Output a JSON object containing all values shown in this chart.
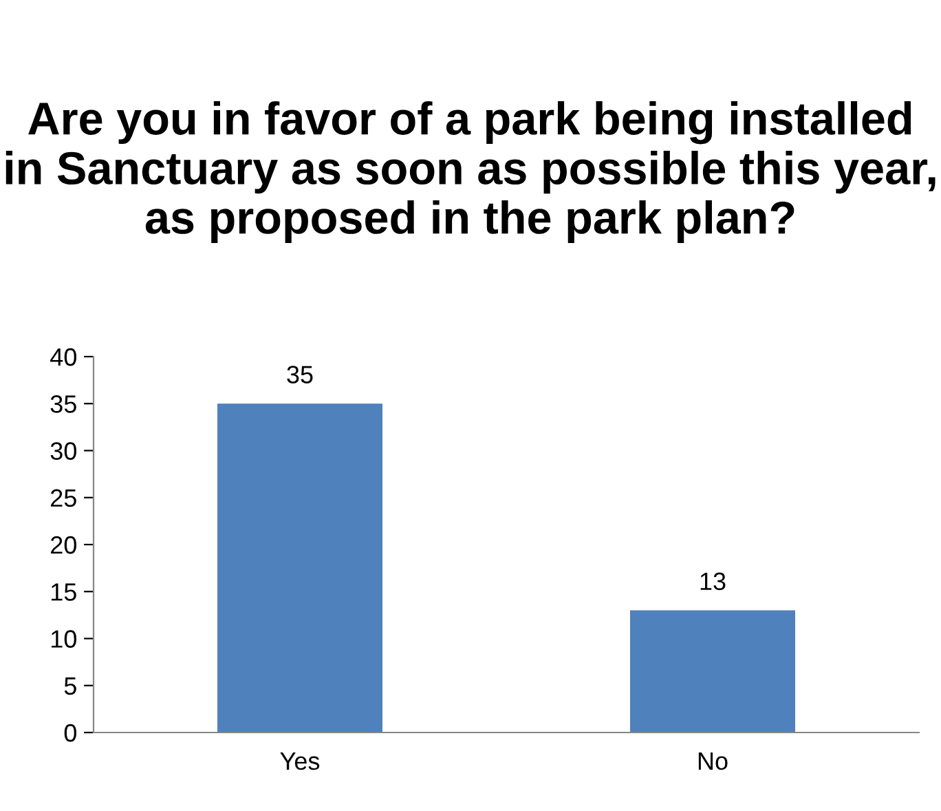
{
  "chart_data": {
    "type": "bar",
    "title": "Are you in favor of a park being installed in Sanctuary as soon as possible this year, as proposed in the park plan?",
    "categories": [
      "Yes",
      "No"
    ],
    "values": [
      35,
      13
    ],
    "color": "#4f81bd",
    "ylim": [
      0,
      40
    ],
    "yticks": [
      0,
      5,
      10,
      15,
      20,
      25,
      30,
      35,
      40
    ],
    "grid": false,
    "data_labels": true
  }
}
